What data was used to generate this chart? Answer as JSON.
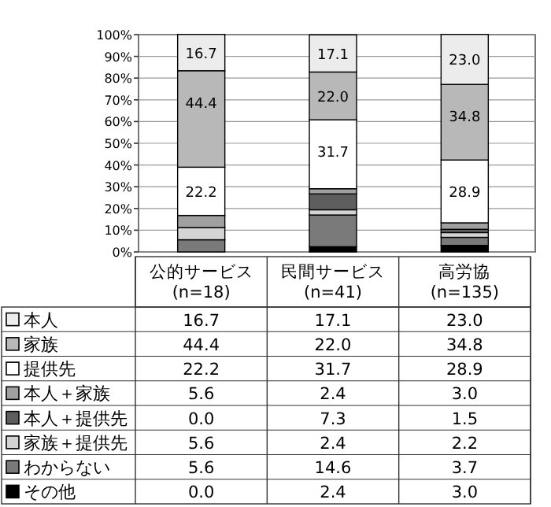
{
  "chart_data": {
    "type": "bar",
    "stacked": true,
    "categories": [
      "公的サービス(n=18)",
      "民間サービス(n=41)",
      "高労協(n=135)"
    ],
    "ylim": [
      0,
      100
    ],
    "yticks": [
      {
        "value": 0,
        "label": "0%"
      },
      {
        "value": 10,
        "label": "10%"
      },
      {
        "value": 20,
        "label": "20%"
      },
      {
        "value": 30,
        "label": "30%"
      },
      {
        "value": 40,
        "label": "40%"
      },
      {
        "value": 50,
        "label": "50%"
      },
      {
        "value": 60,
        "label": "60%"
      },
      {
        "value": 70,
        "label": "70%"
      },
      {
        "value": 80,
        "label": "80%"
      },
      {
        "value": 90,
        "label": "90%"
      },
      {
        "value": 100,
        "label": "100%"
      }
    ],
    "grid": "y",
    "legend": "bottom",
    "series": [
      {
        "name": "その他",
        "color": "#000000",
        "values": [
          0.0,
          2.4,
          3.0
        ],
        "value_labels": [
          "0.0",
          "2.4",
          "3.0"
        ]
      },
      {
        "name": "わからない",
        "color": "#7a7a7a",
        "values": [
          5.6,
          14.6,
          3.7
        ],
        "value_labels": [
          "5.6",
          "14.6",
          "3.7"
        ]
      },
      {
        "name": "家族＋提供先",
        "color": "#d4d4d4",
        "values": [
          5.6,
          2.4,
          2.2
        ],
        "value_labels": [
          "5.6",
          "2.4",
          "2.2"
        ]
      },
      {
        "name": "本人＋提供先",
        "color": "#5e5e5e",
        "values": [
          0.0,
          7.3,
          1.5
        ],
        "value_labels": [
          "0.0",
          "7.3",
          "1.5"
        ]
      },
      {
        "name": "本人＋家族",
        "color": "#a0a0a0",
        "values": [
          5.6,
          2.4,
          3.0
        ],
        "value_labels": [
          "5.6",
          "2.4",
          "3.0"
        ]
      },
      {
        "name": "提供先",
        "color": "#ffffff",
        "values": [
          22.2,
          31.7,
          28.9
        ],
        "value_labels": [
          "22.2",
          "31.7",
          "28.9"
        ]
      },
      {
        "name": "家族",
        "color": "#b8b8b8",
        "values": [
          44.4,
          22.0,
          34.8
        ],
        "value_labels": [
          "44.4",
          "22.0",
          "34.8"
        ]
      },
      {
        "name": "本人",
        "color": "#ececec",
        "values": [
          16.7,
          17.1,
          23.0
        ],
        "value_labels": [
          "16.7",
          "17.1",
          "23.0"
        ]
      }
    ],
    "annotations": [
      {
        "text": "22.2",
        "x": "公的サービス(n=18)",
        "y": 39.0
      },
      {
        "text": "44.4",
        "x": "公的サービス(n=18)",
        "y": 83.4
      },
      {
        "text": "16.7",
        "x": "公的サービス(n=18)",
        "y": 100.1
      },
      {
        "text": "31.7",
        "x": "民間サービス(n=41)",
        "y": 60.8
      },
      {
        "text": "22.0",
        "x": "民間サービス(n=41)",
        "y": 82.8
      },
      {
        "text": "17.1",
        "x": "民間サービス(n=41)",
        "y": 99.9
      },
      {
        "text": "28.9",
        "x": "高労協(n=135)",
        "y": 42.3
      },
      {
        "text": "34.8",
        "x": "高労協(n=135)",
        "y": 77.1
      },
      {
        "text": "23.0",
        "x": "高労協(n=135)",
        "y": 100.1
      }
    ]
  }
}
